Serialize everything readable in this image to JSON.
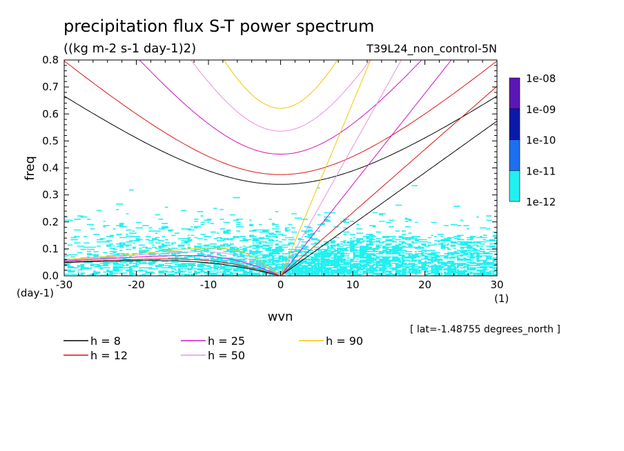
{
  "chart_data": {
    "type": "line",
    "title": "precipitation flux S-T power spectrum",
    "units_label": "((kg m-2 s-1 day-1)2)",
    "experiment_label": "T39L24_non_control-5N",
    "xlabel": "wvn",
    "ylabel": "freq",
    "x_unit_label": "(1)",
    "y_unit_label": "(day-1)",
    "xlim": [
      -30,
      30
    ],
    "ylim": [
      0,
      0.8
    ],
    "x_ticks": [
      -30,
      -20,
      -10,
      0,
      10,
      20,
      30
    ],
    "y_ticks": [
      0.0,
      0.1,
      0.2,
      0.3,
      0.4,
      0.5,
      0.6,
      0.7,
      0.8
    ],
    "x_tick_labels": [
      "-30",
      "-20",
      "-10",
      "0",
      "10",
      "20",
      "30"
    ],
    "y_tick_labels": [
      "0.0",
      "0.1",
      "0.2",
      "0.3",
      "0.4",
      "0.5",
      "0.6",
      "0.7",
      "0.8"
    ],
    "location_note": "[ lat=-1.48755 degrees_north ]",
    "colorbar": {
      "labels": [
        "1e-08",
        "1e-09",
        "1e-10",
        "1e-11",
        "1e-12"
      ],
      "colors": [
        "#5b16b8",
        "#0a1aa8",
        "#1e6ef0",
        "#22f0f0"
      ]
    },
    "spectrum_color": "#22f0f0",
    "series": [
      {
        "name": "h =  8",
        "h": 8,
        "color": "#000000"
      },
      {
        "name": "h = 12",
        "h": 12,
        "color": "#e01010"
      },
      {
        "name": "h = 25",
        "h": 25,
        "color": "#d010c0"
      },
      {
        "name": "h = 50",
        "h": 50,
        "color": "#e890e0"
      },
      {
        "name": "h = 90",
        "h": 90,
        "color": "#f0c800"
      }
    ]
  }
}
